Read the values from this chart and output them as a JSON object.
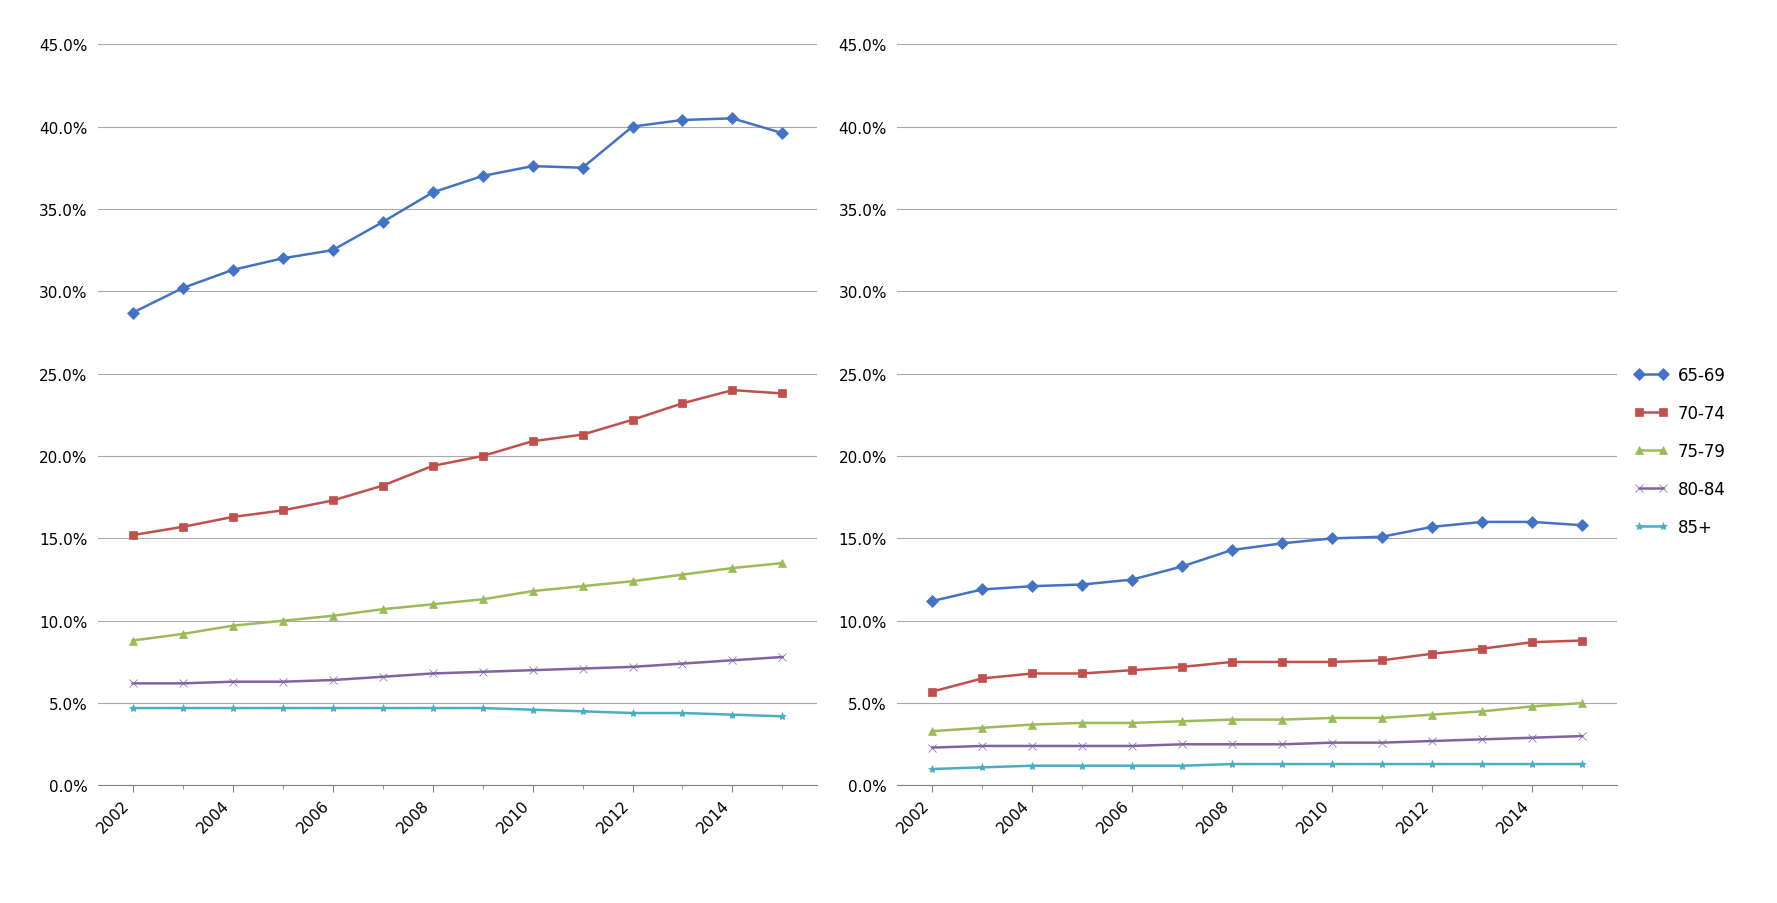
{
  "years": [
    2002,
    2003,
    2004,
    2005,
    2006,
    2007,
    2008,
    2009,
    2010,
    2011,
    2012,
    2013,
    2014,
    2015
  ],
  "left_chart": {
    "65-69": [
      0.287,
      0.302,
      0.313,
      0.32,
      0.325,
      0.342,
      0.36,
      0.37,
      0.376,
      0.375,
      0.4,
      0.404,
      0.405,
      0.396
    ],
    "70-74": [
      0.152,
      0.157,
      0.163,
      0.167,
      0.173,
      0.182,
      0.194,
      0.2,
      0.209,
      0.213,
      0.222,
      0.232,
      0.24,
      0.238
    ],
    "75-79": [
      0.088,
      0.092,
      0.097,
      0.1,
      0.103,
      0.107,
      0.11,
      0.113,
      0.118,
      0.121,
      0.124,
      0.128,
      0.132,
      0.135
    ],
    "80-84": [
      0.062,
      0.062,
      0.063,
      0.063,
      0.064,
      0.066,
      0.068,
      0.069,
      0.07,
      0.071,
      0.072,
      0.074,
      0.076,
      0.078
    ],
    "85+": [
      0.047,
      0.047,
      0.047,
      0.047,
      0.047,
      0.047,
      0.047,
      0.047,
      0.046,
      0.045,
      0.044,
      0.044,
      0.043,
      0.042
    ]
  },
  "right_chart": {
    "65-69": [
      0.112,
      0.119,
      0.121,
      0.122,
      0.125,
      0.133,
      0.143,
      0.147,
      0.15,
      0.151,
      0.157,
      0.16,
      0.16,
      0.158
    ],
    "70-74": [
      0.057,
      0.065,
      0.068,
      0.068,
      0.07,
      0.072,
      0.075,
      0.075,
      0.075,
      0.076,
      0.08,
      0.083,
      0.087,
      0.088
    ],
    "75-79": [
      0.033,
      0.035,
      0.037,
      0.038,
      0.038,
      0.039,
      0.04,
      0.04,
      0.041,
      0.041,
      0.043,
      0.045,
      0.048,
      0.05
    ],
    "80-84": [
      0.023,
      0.024,
      0.024,
      0.024,
      0.024,
      0.025,
      0.025,
      0.025,
      0.026,
      0.026,
      0.027,
      0.028,
      0.029,
      0.03
    ],
    "85+": [
      0.01,
      0.011,
      0.012,
      0.012,
      0.012,
      0.012,
      0.013,
      0.013,
      0.013,
      0.013,
      0.013,
      0.013,
      0.013,
      0.013
    ]
  },
  "series_colors": {
    "65-69": "#4472C4",
    "70-74": "#C0504D",
    "75-79": "#9BBB59",
    "80-84": "#8064A2",
    "85+": "#4BACC6"
  },
  "series_markers": {
    "65-69": "D",
    "70-74": "s",
    "75-79": "^",
    "80-84": "x",
    "85+": "*"
  },
  "ylim": [
    0.0,
    0.45
  ],
  "yticks": [
    0.0,
    0.05,
    0.1,
    0.15,
    0.2,
    0.25,
    0.3,
    0.35,
    0.4,
    0.45
  ],
  "xtick_labels": [
    2002,
    2004,
    2006,
    2008,
    2010,
    2012,
    2014
  ],
  "background_color": "#FFFFFF",
  "plot_bg_color": "#FFFFFF",
  "grid_color": "#A9A9A9",
  "legend_labels": [
    "65-69",
    "70-74",
    "75-79",
    "80-84",
    "85+"
  ],
  "marker_size": 6,
  "line_width": 1.8,
  "tick_fontsize": 11,
  "legend_fontsize": 12
}
